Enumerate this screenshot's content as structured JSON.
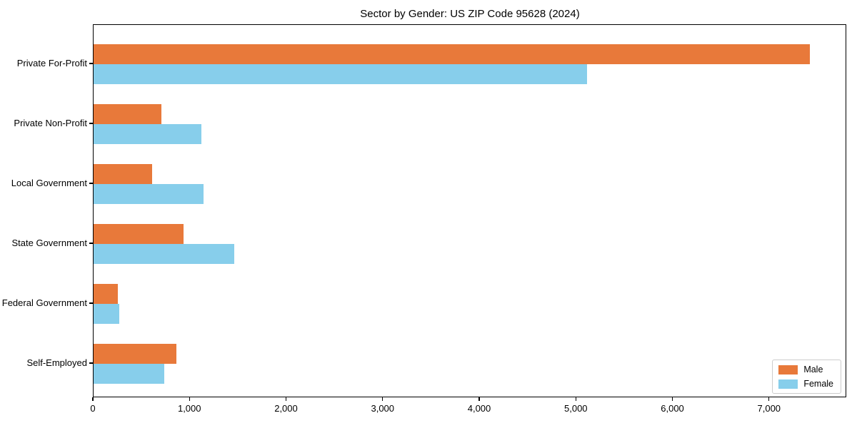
{
  "chart_data": {
    "type": "bar",
    "orientation": "horizontal",
    "title": "Sector by Gender: US ZIP Code 95628 (2024)",
    "categories": [
      "Private For-Profit",
      "Private Non-Profit",
      "Local Government",
      "State Government",
      "Federal Government",
      "Self-Employed"
    ],
    "series": [
      {
        "name": "Male",
        "color": "#e8793a",
        "values": [
          7430,
          700,
          610,
          930,
          250,
          860
        ]
      },
      {
        "name": "Female",
        "color": "#87ceeb",
        "values": [
          5120,
          1120,
          1140,
          1460,
          270,
          730
        ]
      }
    ],
    "xlabel": "",
    "ylabel": "",
    "xlim": [
      0,
      7800
    ],
    "xticks": [
      0,
      1000,
      2000,
      3000,
      4000,
      5000,
      6000,
      7000
    ],
    "xtick_labels": [
      "0",
      "1,000",
      "2,000",
      "3,000",
      "4,000",
      "5,000",
      "6,000",
      "7,000"
    ],
    "grid": false,
    "legend_position": "lower right",
    "background_color": "#ffffff",
    "axis_color": "#000000"
  }
}
